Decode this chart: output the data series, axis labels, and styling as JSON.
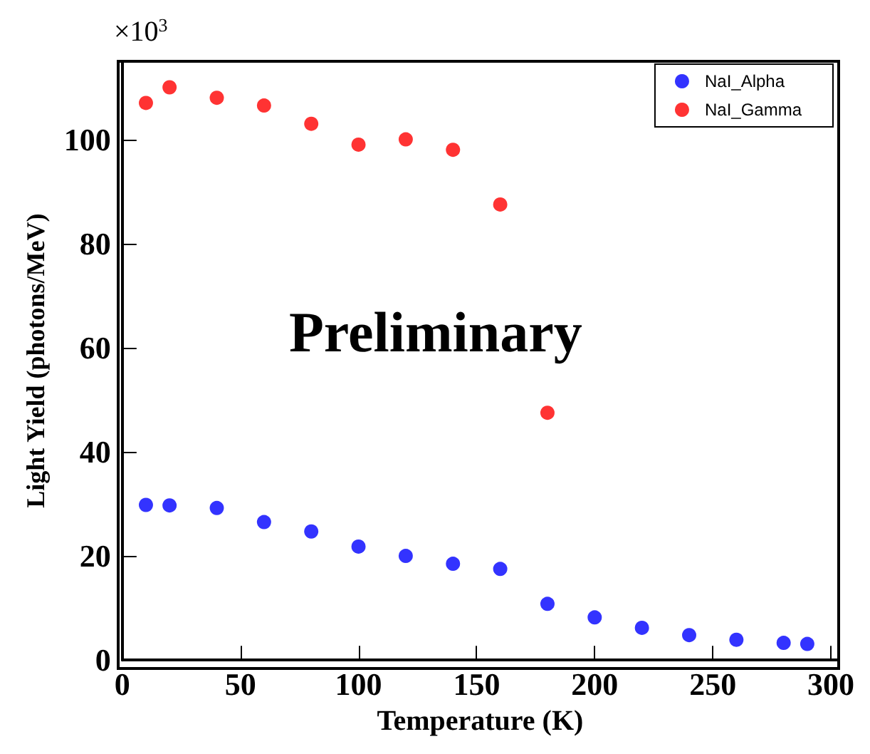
{
  "chart_data": {
    "type": "scatter",
    "xlabel": "Temperature (K)",
    "ylabel": "Light Yield (photons/MeV)",
    "annotations": [
      "×10$^{3}$",
      "Preliminary"
    ],
    "xlim": [
      0,
      303
    ],
    "xticks": [
      0,
      50,
      100,
      150,
      200,
      250,
      300
    ],
    "ylim": [
      0,
      115
    ],
    "yticks": [
      0,
      20,
      40,
      60,
      80,
      100
    ],
    "legend": "top right",
    "grid": false,
    "marker": "circle",
    "series": [
      {
        "name": "NaI_Alpha",
        "color": "#0000ff",
        "x": [
          10,
          20,
          40,
          60,
          80,
          100,
          120,
          140,
          160,
          180,
          200,
          220,
          240,
          260,
          280,
          290
        ],
        "values": [
          29.8,
          29.7,
          29.2,
          26.5,
          24.7,
          21.8,
          20,
          18.5,
          17.5,
          10.8,
          8.2,
          6.2,
          4.8,
          3.9,
          3.3,
          3.1
        ]
      },
      {
        "name": "NaI_Gamma",
        "color": "#ff0000",
        "x": [
          10,
          20,
          40,
          60,
          80,
          100,
          120,
          140,
          160,
          180
        ],
        "values": [
          107,
          110,
          108,
          106.5,
          103,
          99,
          100,
          98,
          87.5,
          47.5
        ]
      }
    ]
  }
}
